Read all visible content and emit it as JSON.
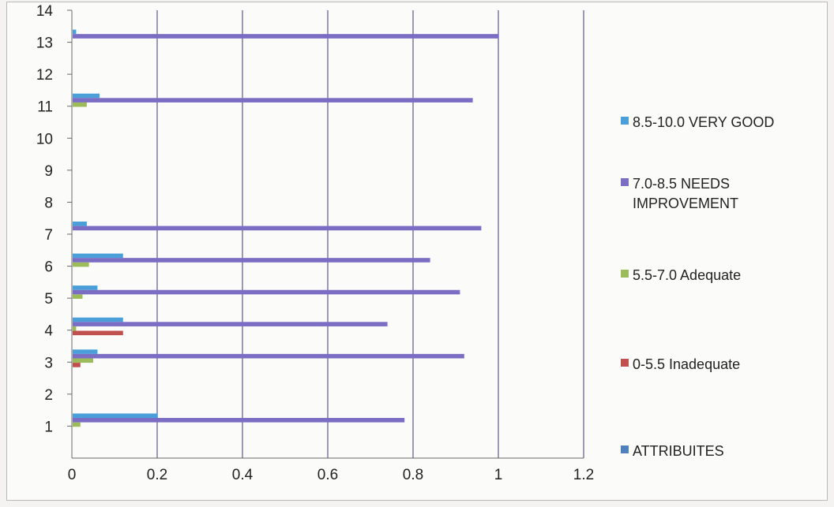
{
  "chart_data": {
    "type": "bar",
    "orientation": "horizontal",
    "title": "",
    "xlabel": "",
    "ylabel": "",
    "xlim": [
      0,
      1.2
    ],
    "ylim": [
      0,
      14
    ],
    "x_ticks": [
      "0",
      "0.2",
      "0.4",
      "0.6",
      "0.8",
      "1",
      "1.2"
    ],
    "y_ticks": [
      "1",
      "2",
      "3",
      "4",
      "5",
      "6",
      "7",
      "8",
      "9",
      "10",
      "11",
      "12",
      "13",
      "14"
    ],
    "grid": "vertical",
    "legend_position": "right",
    "categories": [
      1,
      3,
      4,
      5,
      6,
      7,
      11,
      13
    ],
    "series": [
      {
        "name": "8.5-10.0 VERY  GOOD",
        "color": "#4a9fd8",
        "values": [
          0.2,
          0.06,
          0.12,
          0.06,
          0.12,
          0.035,
          0.065,
          0.01
        ]
      },
      {
        "name": "7.0-8.5 NEEDS IMPROVEMENT",
        "color": "#7b6cc4",
        "values": [
          0.78,
          0.92,
          0.74,
          0.91,
          0.84,
          0.96,
          0.94,
          1.0
        ]
      },
      {
        "name": "5.5-7.0 Adequate",
        "color": "#9cbb5a",
        "values": [
          0.02,
          0.05,
          0.01,
          0.025,
          0.04,
          0,
          0.035,
          0
        ]
      },
      {
        "name": "0-5.5 Inadequate",
        "color": "#c0504d",
        "values": [
          0,
          0.02,
          0.12,
          0,
          0,
          0,
          0,
          0
        ]
      },
      {
        "name": "ATTRIBUITES",
        "color": "#4f81bd",
        "values": [
          0,
          0,
          0,
          0,
          0,
          0,
          0,
          0
        ]
      }
    ]
  }
}
